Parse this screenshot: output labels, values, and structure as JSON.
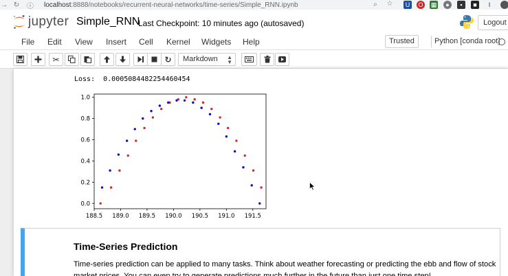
{
  "browser": {
    "url_host": "localhost",
    "url_rest": ":8888/notebooks/recurrent-neural-networks/time-series/Simple_RNN.ipynb"
  },
  "header": {
    "logo_text": "jupyter",
    "notebook_name": "Simple_RNN",
    "checkpoint": "Last Checkpoint: 10 minutes ago (autosaved)",
    "logout_label": "Logout"
  },
  "menubar": {
    "items": [
      "File",
      "Edit",
      "View",
      "Insert",
      "Cell",
      "Kernel",
      "Widgets",
      "Help"
    ],
    "trusted_label": "Trusted",
    "kernel_label": "Python [conda root]"
  },
  "toolbar": {
    "cell_type": "Markdown"
  },
  "output": {
    "loss_text": "Loss:  0.0005084482254460454"
  },
  "chart_data": {
    "type": "scatter",
    "xlim": [
      188.5,
      191.75
    ],
    "ylim": [
      -0.05,
      1.03
    ],
    "x_ticks": [
      188.5,
      189.0,
      189.5,
      190.0,
      190.5,
      191.0,
      191.5
    ],
    "x_tick_labels": [
      "188.5",
      "189.0",
      "189.5",
      "190.0",
      "190.5",
      "191.0",
      "191.5"
    ],
    "y_ticks": [
      0.0,
      0.2,
      0.4,
      0.6,
      0.8,
      1.0
    ],
    "y_tick_labels": [
      "0.0",
      "0.2",
      "0.4",
      "0.6",
      "0.8",
      "1.0"
    ],
    "grid": false,
    "series": [
      {
        "color": "#d62728",
        "x": [
          188.62,
          188.82,
          188.98,
          189.14,
          189.29,
          189.45,
          189.61,
          189.77,
          189.93,
          190.09,
          190.24,
          190.4,
          190.56,
          190.72,
          190.88,
          191.03,
          191.19,
          191.35,
          191.51,
          191.66
        ],
        "y": [
          0.0,
          0.15,
          0.31,
          0.45,
          0.59,
          0.71,
          0.81,
          0.89,
          0.95,
          0.98,
          1.0,
          0.98,
          0.95,
          0.89,
          0.81,
          0.71,
          0.59,
          0.45,
          0.31,
          0.15
        ]
      },
      {
        "color": "#0b0bd0",
        "x": [
          188.65,
          188.8,
          188.96,
          189.12,
          189.27,
          189.42,
          189.58,
          189.74,
          189.9,
          190.06,
          190.21,
          190.37,
          190.53,
          190.69,
          190.85,
          191.0,
          191.16,
          191.32,
          191.48,
          191.63
        ],
        "y": [
          0.15,
          0.31,
          0.46,
          0.59,
          0.7,
          0.8,
          0.87,
          0.92,
          0.95,
          0.97,
          0.97,
          0.95,
          0.9,
          0.84,
          0.75,
          0.63,
          0.49,
          0.34,
          0.17,
          0.0
        ]
      }
    ]
  },
  "markdown_cell": {
    "heading": "Time-Series Prediction",
    "paragraph": "Time-series prediction can be applied to many tasks. Think about weather forecasting or predicting the ebb and flow of stock market prices. You can even try to generate predictions much further in the future than just one time step!"
  }
}
